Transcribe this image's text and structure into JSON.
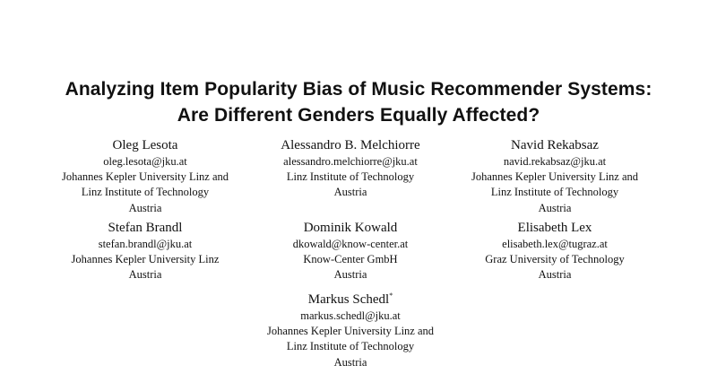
{
  "title": {
    "line1": "Analyzing Item Popularity Bias of Music Recommender Systems:",
    "line2": "Are Different Genders Equally Affected?"
  },
  "authors": [
    {
      "name": "Oleg Lesota",
      "email": "oleg.lesota@jku.at",
      "affil1": "Johannes Kepler University Linz and",
      "affil2": "Linz Institute of Technology",
      "country": "Austria"
    },
    {
      "name": "Alessandro B. Melchiorre",
      "email": "alessandro.melchiorre@jku.at",
      "affil1": "Linz Institute of Technology",
      "country": "Austria"
    },
    {
      "name": "Navid Rekabsaz",
      "email": "navid.rekabsaz@jku.at",
      "affil1": "Johannes Kepler University Linz and",
      "affil2": "Linz Institute of Technology",
      "country": "Austria"
    },
    {
      "name": "Stefan Brandl",
      "email": "stefan.brandl@jku.at",
      "affil1": "Johannes Kepler University Linz",
      "country": "Austria"
    },
    {
      "name": "Dominik Kowald",
      "email": "dkowald@know-center.at",
      "affil1": "Know-Center GmbH",
      "country": "Austria"
    },
    {
      "name": "Elisabeth Lex",
      "email": "elisabeth.lex@tugraz.at",
      "affil1": "Graz University of Technology",
      "country": "Austria"
    },
    {
      "name": "Markus Schedl",
      "mark": "*",
      "email": "markus.schedl@jku.at",
      "affil1": "Johannes Kepler University Linz and",
      "affil2": "Linz Institute of Technology",
      "country": "Austria"
    }
  ]
}
